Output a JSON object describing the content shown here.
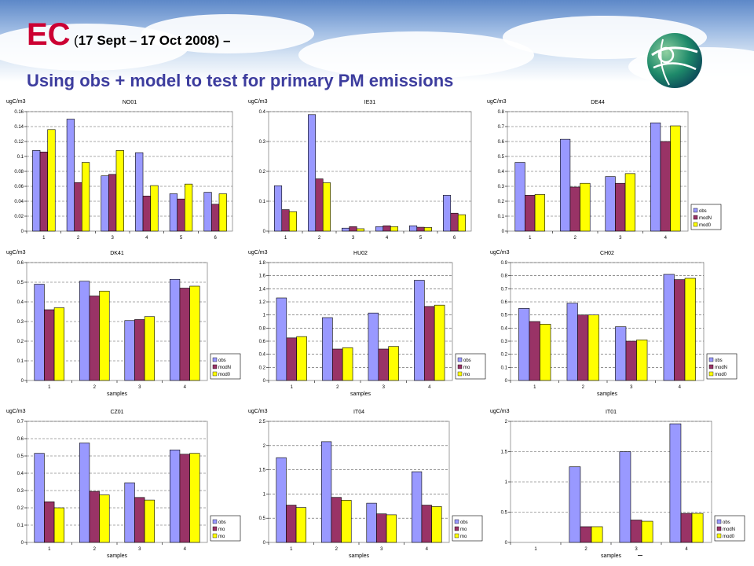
{
  "header": {
    "title_main": "EC",
    "title_paren_open": "(",
    "title_period": "17 Sept – 17 Oct 2008) –",
    "subtitle": "Using obs + model to test for primary PM emissions"
  },
  "colors": {
    "obs": "#9999ff",
    "modN": "#993366",
    "mod0": "#ffff00",
    "title_red": "#cc0033",
    "subtitle_blue": "#3d3d9e"
  },
  "logo": {
    "icon": "globe-logo-icon"
  },
  "chart_data": [
    {
      "type": "bar",
      "title": "NO01",
      "ylabel": "ugC/m3",
      "xlabel": "",
      "categories": [
        "1",
        "2",
        "3",
        "4",
        "5",
        "6"
      ],
      "yticks": [
        "0",
        "0.02",
        "0.04",
        "0.06",
        "0.08",
        "0.1",
        "0.12",
        "0.14",
        "0.16"
      ],
      "ylim": [
        0,
        0.16
      ],
      "legend": [],
      "legend_position": "none",
      "grid": true,
      "series": [
        {
          "key": "obs",
          "values": [
            0.108,
            0.15,
            0.074,
            0.105,
            0.05,
            0.052
          ]
        },
        {
          "key": "modN",
          "values": [
            0.106,
            0.065,
            0.076,
            0.047,
            0.043,
            0.036
          ]
        },
        {
          "key": "mod0",
          "values": [
            0.136,
            0.092,
            0.108,
            0.061,
            0.063,
            0.05
          ]
        }
      ]
    },
    {
      "type": "bar",
      "title": "IE31",
      "ylabel": "ugC/m3",
      "xlabel": "",
      "categories": [
        "1",
        "2",
        "3",
        "4",
        "5",
        "6"
      ],
      "yticks": [
        "0",
        "0.1",
        "0.2",
        "0.3",
        "0.4"
      ],
      "ylim": [
        0,
        0.4
      ],
      "legend": [],
      "legend_position": "none",
      "grid": true,
      "series": [
        {
          "key": "obs",
          "values": [
            0.152,
            0.39,
            0.01,
            0.015,
            0.018,
            0.12
          ]
        },
        {
          "key": "modN",
          "values": [
            0.072,
            0.175,
            0.015,
            0.018,
            0.013,
            0.06
          ]
        },
        {
          "key": "mod0",
          "values": [
            0.065,
            0.162,
            0.008,
            0.015,
            0.012,
            0.055
          ]
        }
      ]
    },
    {
      "type": "bar",
      "title": "DE44",
      "ylabel": "ugC/m3",
      "xlabel": "",
      "categories": [
        "1",
        "2",
        "3",
        "4"
      ],
      "yticks": [
        "0",
        "0.1",
        "0.2",
        "0.3",
        "0.4",
        "0.5",
        "0.6",
        "0.7",
        "0.8"
      ],
      "ylim": [
        0,
        0.8
      ],
      "legend": [
        "obs",
        "modN",
        "mod0"
      ],
      "legend_position": "right",
      "grid": true,
      "series": [
        {
          "key": "obs",
          "values": [
            0.46,
            0.615,
            0.365,
            0.725
          ]
        },
        {
          "key": "modN",
          "values": [
            0.24,
            0.295,
            0.32,
            0.6
          ]
        },
        {
          "key": "mod0",
          "values": [
            0.245,
            0.32,
            0.385,
            0.705
          ]
        }
      ]
    },
    {
      "type": "bar",
      "title": "DK41",
      "ylabel": "ugC/m3",
      "xlabel": "samples",
      "categories": [
        "1",
        "2",
        "3",
        "4"
      ],
      "yticks": [
        "0",
        "0.1",
        "0.2",
        "0.3",
        "0.4",
        "0.5",
        "0.6"
      ],
      "ylim": [
        0,
        0.6
      ],
      "legend": [
        "obs",
        "modN",
        "mod0"
      ],
      "legend_position": "right",
      "grid": true,
      "series": [
        {
          "key": "obs",
          "values": [
            0.49,
            0.505,
            0.305,
            0.515
          ]
        },
        {
          "key": "modN",
          "values": [
            0.36,
            0.43,
            0.31,
            0.47
          ]
        },
        {
          "key": "mod0",
          "values": [
            0.37,
            0.455,
            0.325,
            0.48
          ]
        }
      ]
    },
    {
      "type": "bar",
      "title": "HU02",
      "ylabel": "ugC/m3",
      "xlabel": "samples",
      "categories": [
        "1",
        "2",
        "3",
        "4"
      ],
      "yticks": [
        "0",
        "0.2",
        "0.4",
        "0.6",
        "0.8",
        "1",
        "1.2",
        "1.4",
        "1.6",
        "1.8"
      ],
      "ylim": [
        0,
        1.8
      ],
      "legend": [
        "obs",
        "mo",
        "mo"
      ],
      "legend_position": "right",
      "grid": true,
      "series": [
        {
          "key": "obs",
          "values": [
            1.26,
            0.96,
            1.03,
            1.53
          ]
        },
        {
          "key": "modN",
          "values": [
            0.65,
            0.48,
            0.48,
            1.13
          ]
        },
        {
          "key": "mod0",
          "values": [
            0.67,
            0.5,
            0.52,
            1.15
          ]
        }
      ]
    },
    {
      "type": "bar",
      "title": "CH02",
      "ylabel": "ugC/m3",
      "xlabel": "samples",
      "categories": [
        "1",
        "2",
        "3",
        "4"
      ],
      "yticks": [
        "0",
        "0.1",
        "0.2",
        "0.3",
        "0.4",
        "0.5",
        "0.6",
        "0.7",
        "0.8",
        "0.9"
      ],
      "ylim": [
        0,
        0.9
      ],
      "legend": [
        "obs",
        "modN",
        "mod0"
      ],
      "legend_position": "right",
      "grid": true,
      "series": [
        {
          "key": "obs",
          "values": [
            0.55,
            0.59,
            0.41,
            0.81
          ]
        },
        {
          "key": "modN",
          "values": [
            0.45,
            0.5,
            0.3,
            0.77
          ]
        },
        {
          "key": "mod0",
          "values": [
            0.43,
            0.5,
            0.31,
            0.78
          ]
        }
      ]
    },
    {
      "type": "bar",
      "title": "CZ01",
      "ylabel": "ugC/m3",
      "xlabel": "samples",
      "categories": [
        "1",
        "2",
        "3",
        "4"
      ],
      "yticks": [
        "0",
        "0.1",
        "0.2",
        "0.3",
        "0.4",
        "0.5",
        "0.6",
        "0.7"
      ],
      "ylim": [
        0,
        0.7
      ],
      "legend": [
        "obs",
        "mo",
        "mo"
      ],
      "legend_position": "right",
      "grid": true,
      "series": [
        {
          "key": "obs",
          "values": [
            0.515,
            0.575,
            0.345,
            0.535
          ]
        },
        {
          "key": "modN",
          "values": [
            0.235,
            0.295,
            0.26,
            0.51
          ]
        },
        {
          "key": "mod0",
          "values": [
            0.2,
            0.275,
            0.245,
            0.515
          ]
        }
      ]
    },
    {
      "type": "bar",
      "title": "IT04",
      "ylabel": "ugC/m3",
      "xlabel": "samples",
      "categories": [
        "1",
        "2",
        "3",
        "4"
      ],
      "yticks": [
        "0",
        "0.5",
        "1",
        "1.5",
        "2",
        "2.5"
      ],
      "ylim": [
        0,
        2.5
      ],
      "legend": [
        "obs",
        "mo",
        "mo"
      ],
      "legend_position": "right",
      "grid": true,
      "series": [
        {
          "key": "obs",
          "values": [
            1.75,
            2.08,
            0.81,
            1.46
          ]
        },
        {
          "key": "modN",
          "values": [
            0.77,
            0.93,
            0.59,
            0.77
          ]
        },
        {
          "key": "mod0",
          "values": [
            0.72,
            0.87,
            0.57,
            0.74
          ]
        }
      ]
    },
    {
      "type": "bar",
      "title": "IT01",
      "ylabel": "ugC/m3",
      "xlabel": "samples",
      "categories": [
        "1",
        "2",
        "3",
        "4"
      ],
      "yticks": [
        "0",
        "0.5",
        "1",
        "1.5",
        "2"
      ],
      "ylim": [
        0,
        2
      ],
      "legend": [
        "obs",
        "modN",
        "mod0"
      ],
      "legend_position": "right",
      "grid": true,
      "series": [
        {
          "key": "obs",
          "values": [
            null,
            1.25,
            1.5,
            1.96
          ]
        },
        {
          "key": "modN",
          "values": [
            null,
            0.26,
            0.37,
            0.48
          ]
        },
        {
          "key": "mod0",
          "values": [
            null,
            0.26,
            0.35,
            0.48
          ]
        }
      ]
    }
  ]
}
